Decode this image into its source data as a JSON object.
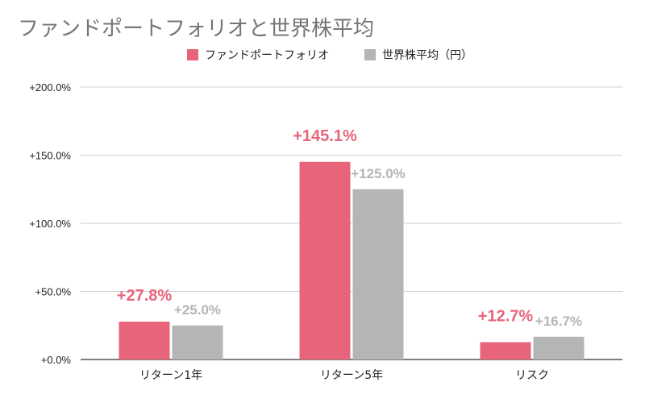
{
  "colors": {
    "fund": "#e8647a",
    "world": "#b5b5b5",
    "title": "#757575",
    "grid": "#d0d0d0",
    "axis": "#333333"
  },
  "chart_data": {
    "type": "bar",
    "title": "ファンドポートフォリオと世界株平均",
    "categories": [
      "リターン1年",
      "リターン5年",
      "リスク"
    ],
    "series": [
      {
        "name": "ファンドポートフォリオ",
        "values": [
          27.8,
          145.1,
          12.7
        ],
        "labels": [
          "+27.8%",
          "+145.1%",
          "+12.7%"
        ]
      },
      {
        "name": "世界株平均（円）",
        "values": [
          25.0,
          125.0,
          16.7
        ],
        "labels": [
          "+25.0%",
          "+125.0%",
          "+16.7%"
        ]
      }
    ],
    "ylim": [
      0,
      200
    ],
    "yticks": [
      0,
      50,
      100,
      150,
      200
    ],
    "ytick_labels": [
      "+0.0%",
      "+50.0%",
      "+100.0%",
      "+150.0%",
      "+200.0%"
    ],
    "grid": true,
    "legend": "top-center"
  }
}
